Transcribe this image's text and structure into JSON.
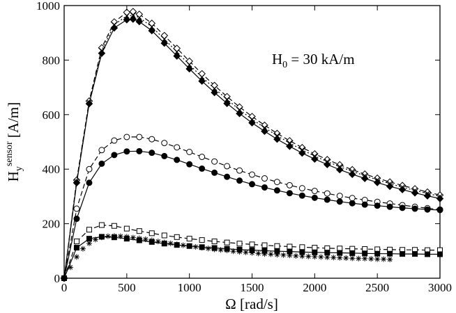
{
  "chart_data": {
    "type": "line",
    "title": "",
    "annotation": {
      "main": "H",
      "sub": "0",
      "rest": " = 30 kA/m"
    },
    "xlabel": "Ω [rad/s]",
    "ylabel": {
      "main": "H",
      "sub": "y",
      "sup": "sensor",
      "rest": " [A/m]"
    },
    "xlim": [
      0,
      3000
    ],
    "ylim": [
      0,
      1000
    ],
    "xticks": [
      0,
      500,
      1000,
      1500,
      2000,
      2500,
      3000
    ],
    "yticks": [
      0,
      200,
      400,
      600,
      800,
      1000
    ],
    "xtick_labels": [
      "0",
      "500",
      "1000",
      "1500",
      "2000",
      "2500",
      "3000"
    ],
    "ytick_labels": [
      "0",
      "200",
      "400",
      "600",
      "800",
      "1000"
    ],
    "grid": false,
    "series": [
      {
        "name": "open diamonds dashed",
        "marker": "diamond-open",
        "line": "dashed",
        "x": [
          0,
          100,
          200,
          300,
          400,
          500,
          550,
          600,
          700,
          800,
          900,
          1000,
          1100,
          1200,
          1300,
          1400,
          1500,
          1600,
          1700,
          1800,
          1900,
          2000,
          2100,
          2200,
          2300,
          2400,
          2500,
          2600,
          2700,
          2800,
          2900,
          3000
        ],
        "y": [
          0,
          360,
          650,
          845,
          940,
          975,
          978,
          968,
          935,
          890,
          843,
          796,
          750,
          707,
          666,
          628,
          593,
          561,
          531,
          504,
          479,
          456,
          435,
          416,
          398,
          382,
          367,
          353,
          340,
          328,
          316,
          305
        ]
      },
      {
        "name": "crosses dotted",
        "marker": "x",
        "line": "dotted",
        "x": [
          0,
          100,
          200,
          300,
          400,
          500,
          550,
          600,
          700,
          800,
          900,
          1000,
          1100,
          1200,
          1300,
          1400,
          1500,
          1600,
          1700,
          1800,
          1900,
          2000,
          2100,
          2200,
          2300,
          2400,
          2500,
          2600,
          2700,
          2800,
          2900,
          3000
        ],
        "y": [
          0,
          355,
          645,
          835,
          930,
          962,
          964,
          956,
          922,
          877,
          830,
          783,
          738,
          696,
          656,
          618,
          583,
          552,
          523,
          496,
          471,
          448,
          428,
          409,
          392,
          376,
          361,
          347,
          334,
          322,
          311,
          300
        ]
      },
      {
        "name": "filled diamonds solid",
        "marker": "diamond-filled",
        "line": "solid",
        "x": [
          0,
          100,
          200,
          300,
          400,
          500,
          550,
          600,
          700,
          800,
          900,
          1000,
          1100,
          1200,
          1300,
          1400,
          1500,
          1600,
          1700,
          1800,
          1900,
          2000,
          2100,
          2200,
          2300,
          2400,
          2500,
          2600,
          2700,
          2800,
          2900,
          3000
        ],
        "y": [
          0,
          350,
          640,
          825,
          918,
          948,
          950,
          941,
          908,
          862,
          815,
          768,
          723,
          681,
          641,
          604,
          570,
          539,
          510,
          484,
          459,
          437,
          417,
          398,
          381,
          366,
          351,
          337,
          325,
          313,
          302,
          292
        ]
      },
      {
        "name": "open circles dashed",
        "marker": "circle-open",
        "line": "dashed",
        "x": [
          0,
          100,
          200,
          300,
          400,
          500,
          600,
          700,
          800,
          900,
          1000,
          1100,
          1200,
          1300,
          1400,
          1500,
          1600,
          1700,
          1800,
          1900,
          2000,
          2100,
          2200,
          2300,
          2400,
          2500,
          2600,
          2700,
          2800,
          2900,
          3000
        ],
        "y": [
          0,
          255,
          400,
          470,
          505,
          518,
          518,
          510,
          496,
          480,
          463,
          445,
          428,
          411,
          395,
          380,
          366,
          353,
          341,
          330,
          320,
          311,
          302,
          294,
          287,
          280,
          274,
          268,
          262,
          257,
          252
        ]
      },
      {
        "name": "filled circles solid",
        "marker": "circle-filled",
        "line": "solid",
        "x": [
          0,
          100,
          200,
          300,
          400,
          500,
          600,
          700,
          800,
          900,
          1000,
          1100,
          1200,
          1300,
          1400,
          1500,
          1600,
          1700,
          1800,
          1900,
          2000,
          2100,
          2200,
          2300,
          2400,
          2500,
          2600,
          2700,
          2800,
          2900,
          3000
        ],
        "y": [
          0,
          218,
          350,
          420,
          452,
          465,
          466,
          460,
          448,
          434,
          418,
          402,
          387,
          372,
          358,
          345,
          333,
          322,
          312,
          303,
          295,
          288,
          281,
          275,
          270,
          266,
          262,
          258,
          255,
          252,
          250
        ]
      },
      {
        "name": "open squares dashed",
        "marker": "square-open",
        "line": "dashed",
        "x": [
          0,
          100,
          200,
          300,
          400,
          500,
          600,
          700,
          800,
          900,
          1000,
          1100,
          1200,
          1300,
          1400,
          1500,
          1600,
          1700,
          1800,
          1900,
          2000,
          2100,
          2200,
          2300,
          2400,
          2500,
          2600,
          2700,
          2800,
          2900,
          3000
        ],
        "y": [
          0,
          135,
          178,
          195,
          192,
          182,
          173,
          165,
          157,
          151,
          145,
          140,
          135,
          131,
          127,
          124,
          121,
          118,
          116,
          114,
          112,
          110,
          109,
          108,
          107,
          106,
          105,
          104,
          104,
          103,
          103
        ]
      },
      {
        "name": "filled squares solid",
        "marker": "square-filled",
        "line": "solid",
        "x": [
          0,
          100,
          200,
          300,
          400,
          500,
          600,
          700,
          800,
          900,
          1000,
          1100,
          1200,
          1300,
          1400,
          1500,
          1600,
          1700,
          1800,
          1900,
          2000,
          2100,
          2200,
          2300,
          2400,
          2500,
          2600,
          2700,
          2800,
          2900,
          3000
        ],
        "y": [
          0,
          112,
          145,
          152,
          150,
          145,
          139,
          133,
          127,
          122,
          118,
          114,
          111,
          108,
          105,
          103,
          101,
          99,
          98,
          96,
          95,
          94,
          93,
          92,
          91,
          90,
          90,
          89,
          89,
          88,
          88
        ]
      },
      {
        "name": "asterisks",
        "marker": "asterisk",
        "line": "none",
        "x": [
          0,
          50,
          100,
          150,
          200,
          250,
          300,
          350,
          400,
          450,
          500,
          550,
          600,
          650,
          700,
          750,
          800,
          850,
          900,
          950,
          1000,
          1050,
          1100,
          1150,
          1200,
          1250,
          1300,
          1350,
          1400,
          1450,
          1500,
          1550,
          1600,
          1650,
          1700,
          1750,
          1800,
          1850,
          1900,
          1950,
          2000,
          2050,
          2100,
          2150,
          2200,
          2250,
          2300,
          2350,
          2400,
          2450,
          2500,
          2550,
          2600
        ],
        "y": [
          0,
          40,
          78,
          108,
          128,
          142,
          150,
          154,
          155,
          154,
          152,
          149,
          146,
          143,
          139,
          135,
          131,
          128,
          124,
          121,
          118,
          115,
          112,
          109,
          106,
          104,
          102,
          99,
          97,
          95,
          93,
          91,
          89,
          88,
          86,
          85,
          84,
          82,
          81,
          80,
          79,
          78,
          77,
          76,
          75,
          74,
          73,
          72,
          72,
          71,
          70,
          70,
          69
        ]
      }
    ]
  }
}
